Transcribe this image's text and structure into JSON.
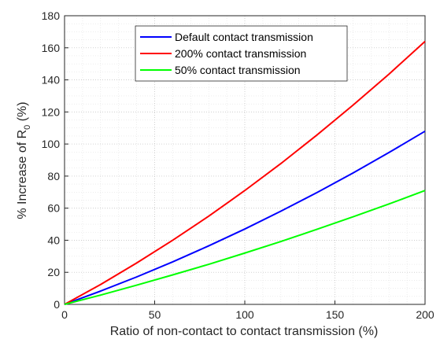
{
  "chart_data": {
    "type": "line",
    "xlabel": "Ratio of non-contact to contact transmission (%)",
    "ylabel": [
      "% Increase of R",
      "0",
      " (%)"
    ],
    "x": [
      0,
      20,
      40,
      60,
      80,
      100,
      120,
      140,
      160,
      180,
      200
    ],
    "series": [
      {
        "name": "Default contact transmission",
        "color": "#0000ff",
        "values": [
          0,
          8.3,
          17.1,
          26.5,
          36.5,
          47,
          58.1,
          69.7,
          81.9,
          94.7,
          108
        ]
      },
      {
        "name": "200% contact transmission",
        "color": "#ff0000",
        "values": [
          0,
          12.4,
          25.8,
          40,
          55,
          71,
          87.8,
          105.6,
          124.2,
          143.6,
          164
        ]
      },
      {
        "name": "50% contact transmission",
        "color": "#00ff00",
        "values": [
          0,
          5.8,
          12,
          18.4,
          25,
          32,
          39.2,
          46.8,
          54.6,
          62.6,
          71
        ]
      }
    ],
    "xlim": [
      0,
      200
    ],
    "xticks": [
      0,
      50,
      100,
      150,
      200
    ],
    "ylim": [
      0,
      180
    ],
    "yticks": [
      0,
      20,
      40,
      60,
      80,
      100,
      120,
      140,
      160,
      180
    ],
    "grid": true,
    "legend": "north"
  }
}
